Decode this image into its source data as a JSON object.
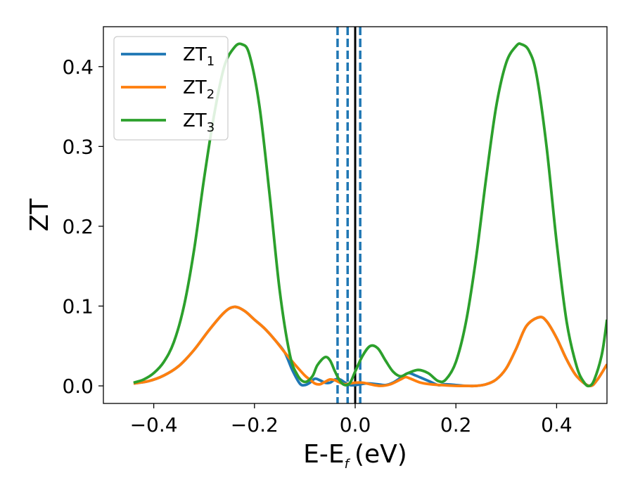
{
  "chart_data": {
    "type": "line",
    "xlabel": "E-E",
    "xlabel_subscript": "f",
    "xlabel_unit": "(eV)",
    "ylabel": "ZT",
    "xlim": [
      -0.5,
      0.5
    ],
    "ylim": [
      -0.022,
      0.45
    ],
    "xticks": [
      -0.4,
      -0.2,
      0.0,
      0.2,
      0.4
    ],
    "xtick_labels": [
      "−0.4",
      "−0.2",
      "0.0",
      "0.2",
      "0.4"
    ],
    "yticks": [
      0.0,
      0.1,
      0.2,
      0.3,
      0.4
    ],
    "ytick_labels": [
      "0.0",
      "0.1",
      "0.2",
      "0.3",
      "0.4"
    ],
    "grid": false,
    "legend_position": "top-left",
    "vertical_lines": [
      {
        "x": -0.035,
        "style": "dashed",
        "color": "#1f77b4"
      },
      {
        "x": -0.015,
        "style": "dashed",
        "color": "#1f77b4"
      },
      {
        "x": 0.01,
        "style": "dashed",
        "color": "#1f77b4"
      },
      {
        "x": 0.0,
        "style": "solid",
        "color": "#000000"
      }
    ],
    "series": [
      {
        "name": "ZT",
        "subscript": "1",
        "color": "#1f77b4",
        "points": [
          [
            -0.44,
            0.003
          ],
          [
            -0.41,
            0.006
          ],
          [
            -0.38,
            0.013
          ],
          [
            -0.35,
            0.025
          ],
          [
            -0.32,
            0.045
          ],
          [
            -0.29,
            0.07
          ],
          [
            -0.26,
            0.092
          ],
          [
            -0.24,
            0.099
          ],
          [
            -0.22,
            0.094
          ],
          [
            -0.2,
            0.083
          ],
          [
            -0.18,
            0.072
          ],
          [
            -0.16,
            0.058
          ],
          [
            -0.14,
            0.042
          ],
          [
            -0.125,
            0.02
          ],
          [
            -0.11,
            0.003
          ],
          [
            -0.1,
            0.001
          ],
          [
            -0.09,
            0.004
          ],
          [
            -0.08,
            0.009
          ],
          [
            -0.07,
            0.007
          ],
          [
            -0.06,
            0.004
          ],
          [
            -0.05,
            0.004
          ],
          [
            -0.04,
            0.008
          ],
          [
            -0.03,
            0.008
          ],
          [
            -0.02,
            0.004
          ],
          [
            -0.01,
            0.001
          ],
          [
            0.0,
            0.001
          ],
          [
            0.01,
            0.002
          ],
          [
            0.02,
            0.003
          ],
          [
            0.03,
            0.003
          ],
          [
            0.045,
            0.002
          ],
          [
            0.06,
            0.001
          ],
          [
            0.075,
            0.004
          ],
          [
            0.09,
            0.01
          ],
          [
            0.105,
            0.016
          ],
          [
            0.12,
            0.013
          ],
          [
            0.135,
            0.009
          ],
          [
            0.15,
            0.005
          ],
          [
            0.165,
            0.001
          ],
          [
            0.18,
            0.002
          ],
          [
            0.2,
            0.001
          ],
          [
            0.22,
            0.0
          ],
          [
            0.24,
            0.0
          ],
          [
            0.26,
            0.002
          ],
          [
            0.28,
            0.008
          ],
          [
            0.3,
            0.022
          ],
          [
            0.32,
            0.047
          ],
          [
            0.34,
            0.075
          ],
          [
            0.365,
            0.086
          ],
          [
            0.38,
            0.081
          ],
          [
            0.4,
            0.06
          ],
          [
            0.42,
            0.033
          ],
          [
            0.44,
            0.012
          ],
          [
            0.465,
            0.0
          ],
          [
            0.48,
            0.007
          ],
          [
            0.5,
            0.027
          ]
        ]
      },
      {
        "name": "ZT",
        "subscript": "2",
        "color": "#ff7f0e",
        "points": [
          [
            -0.44,
            0.003
          ],
          [
            -0.41,
            0.006
          ],
          [
            -0.38,
            0.013
          ],
          [
            -0.35,
            0.025
          ],
          [
            -0.32,
            0.045
          ],
          [
            -0.29,
            0.07
          ],
          [
            -0.26,
            0.092
          ],
          [
            -0.24,
            0.099
          ],
          [
            -0.22,
            0.094
          ],
          [
            -0.2,
            0.083
          ],
          [
            -0.18,
            0.072
          ],
          [
            -0.16,
            0.058
          ],
          [
            -0.14,
            0.042
          ],
          [
            -0.12,
            0.027
          ],
          [
            -0.1,
            0.013
          ],
          [
            -0.09,
            0.008
          ],
          [
            -0.08,
            0.003
          ],
          [
            -0.07,
            0.002
          ],
          [
            -0.06,
            0.005
          ],
          [
            -0.05,
            0.008
          ],
          [
            -0.04,
            0.007
          ],
          [
            -0.03,
            0.004
          ],
          [
            -0.02,
            0.002
          ],
          [
            -0.01,
            0.003
          ],
          [
            0.0,
            0.004
          ],
          [
            0.015,
            0.004
          ],
          [
            0.03,
            0.002
          ],
          [
            0.05,
            0.0
          ],
          [
            0.07,
            0.002
          ],
          [
            0.09,
            0.008
          ],
          [
            0.1,
            0.011
          ],
          [
            0.11,
            0.009
          ],
          [
            0.13,
            0.004
          ],
          [
            0.15,
            0.002
          ],
          [
            0.17,
            0.001
          ],
          [
            0.2,
            0.0
          ],
          [
            0.22,
            0.0
          ],
          [
            0.24,
            0.0
          ],
          [
            0.26,
            0.002
          ],
          [
            0.28,
            0.008
          ],
          [
            0.3,
            0.022
          ],
          [
            0.32,
            0.047
          ],
          [
            0.34,
            0.075
          ],
          [
            0.365,
            0.086
          ],
          [
            0.38,
            0.081
          ],
          [
            0.4,
            0.06
          ],
          [
            0.42,
            0.033
          ],
          [
            0.44,
            0.012
          ],
          [
            0.465,
            0.0
          ],
          [
            0.48,
            0.007
          ],
          [
            0.5,
            0.027
          ]
        ]
      },
      {
        "name": "ZT",
        "subscript": "3",
        "color": "#2ca02c",
        "points": [
          [
            -0.44,
            0.004
          ],
          [
            -0.42,
            0.008
          ],
          [
            -0.4,
            0.016
          ],
          [
            -0.38,
            0.03
          ],
          [
            -0.36,
            0.055
          ],
          [
            -0.34,
            0.1
          ],
          [
            -0.32,
            0.17
          ],
          [
            -0.3,
            0.26
          ],
          [
            -0.28,
            0.34
          ],
          [
            -0.26,
            0.4
          ],
          [
            -0.24,
            0.424
          ],
          [
            -0.225,
            0.428
          ],
          [
            -0.21,
            0.415
          ],
          [
            -0.19,
            0.35
          ],
          [
            -0.17,
            0.24
          ],
          [
            -0.15,
            0.12
          ],
          [
            -0.13,
            0.04
          ],
          [
            -0.115,
            0.014
          ],
          [
            -0.1,
            0.005
          ],
          [
            -0.085,
            0.012
          ],
          [
            -0.075,
            0.026
          ],
          [
            -0.06,
            0.036
          ],
          [
            -0.05,
            0.032
          ],
          [
            -0.04,
            0.018
          ],
          [
            -0.03,
            0.006
          ],
          [
            -0.02,
            0.001
          ],
          [
            -0.01,
            0.004
          ],
          [
            0.0,
            0.018
          ],
          [
            0.015,
            0.038
          ],
          [
            0.03,
            0.05
          ],
          [
            0.045,
            0.047
          ],
          [
            0.06,
            0.032
          ],
          [
            0.075,
            0.018
          ],
          [
            0.09,
            0.012
          ],
          [
            0.105,
            0.016
          ],
          [
            0.125,
            0.02
          ],
          [
            0.145,
            0.016
          ],
          [
            0.165,
            0.006
          ],
          [
            0.18,
            0.008
          ],
          [
            0.2,
            0.03
          ],
          [
            0.22,
            0.08
          ],
          [
            0.24,
            0.16
          ],
          [
            0.26,
            0.26
          ],
          [
            0.28,
            0.35
          ],
          [
            0.3,
            0.405
          ],
          [
            0.32,
            0.426
          ],
          [
            0.33,
            0.428
          ],
          [
            0.345,
            0.42
          ],
          [
            0.36,
            0.39
          ],
          [
            0.38,
            0.3
          ],
          [
            0.4,
            0.18
          ],
          [
            0.42,
            0.08
          ],
          [
            0.44,
            0.024
          ],
          [
            0.455,
            0.004
          ],
          [
            0.465,
            0.0
          ],
          [
            0.475,
            0.008
          ],
          [
            0.49,
            0.04
          ],
          [
            0.5,
            0.083
          ]
        ]
      }
    ]
  }
}
